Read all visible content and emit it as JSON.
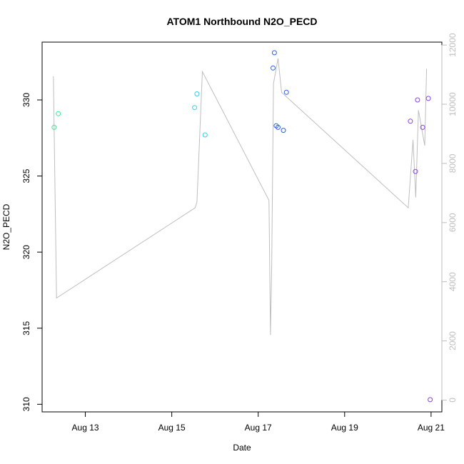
{
  "chart_data": {
    "type": "scatter",
    "title": "ATOM1 Northbound N2O_PECD",
    "xlabel": "Date",
    "ylabel": "N2O_PECD",
    "x_ticks": [
      "Aug 13",
      "Aug 15",
      "Aug 17",
      "Aug 19",
      "Aug 21"
    ],
    "y_ticks": [
      "310",
      "315",
      "320",
      "325",
      "330"
    ],
    "y2_ticks": [
      "0",
      "2000",
      "4000",
      "6000",
      "8000",
      "10000",
      "12000"
    ],
    "xlim": [
      "2016-08-12 00:00",
      "2016-08-21 06:00"
    ],
    "ylim": [
      309.5,
      333.8
    ],
    "y2lim": [
      -400,
      12100
    ],
    "legend": "none",
    "grid": false,
    "series": [
      {
        "kind": "points",
        "points": [
          {
            "x": "2016-08-12 06:40",
            "y": 328.2,
            "color": "#3fe39e"
          },
          {
            "x": "2016-08-12 09:00",
            "y": 329.1,
            "color": "#3fe39e"
          },
          {
            "x": "2016-08-15 12:40",
            "y": 329.5,
            "color": "#2fd0e6"
          },
          {
            "x": "2016-08-15 14:00",
            "y": 330.4,
            "color": "#2fd0e6"
          },
          {
            "x": "2016-08-15 18:30",
            "y": 327.7,
            "color": "#2fd0e6"
          },
          {
            "x": "2016-08-17 08:15",
            "y": 332.1,
            "color": "#2a5cf2"
          },
          {
            "x": "2016-08-17 09:00",
            "y": 333.1,
            "color": "#2a5cf2"
          },
          {
            "x": "2016-08-17 10:00",
            "y": 328.3,
            "color": "#2a5cf2"
          },
          {
            "x": "2016-08-17 11:00",
            "y": 328.2,
            "color": "#2a5cf2"
          },
          {
            "x": "2016-08-17 14:00",
            "y": 328.0,
            "color": "#2a5cf2"
          },
          {
            "x": "2016-08-17 15:40",
            "y": 330.5,
            "color": "#2a5cf2"
          },
          {
            "x": "2016-08-20 12:30",
            "y": 328.6,
            "color": "#8a3fe8"
          },
          {
            "x": "2016-08-20 15:20",
            "y": 325.3,
            "color": "#8a3fe8"
          },
          {
            "x": "2016-08-20 16:30",
            "y": 330.0,
            "color": "#8a3fe8"
          },
          {
            "x": "2016-08-20 19:20",
            "y": 328.2,
            "color": "#8a3fe8"
          },
          {
            "x": "2016-08-20 22:30",
            "y": 330.1,
            "color": "#8a3fe8"
          },
          {
            "x": "2016-08-20 23:30",
            "y": 310.3,
            "color": "#8a3fe8"
          }
        ]
      },
      {
        "kind": "line",
        "axis": "right",
        "color": "#bebebe",
        "points": [
          {
            "x": "2016-08-12 06:15",
            "y": 10950
          },
          {
            "x": "2016-08-12 08:00",
            "y": 3450
          },
          {
            "x": "2016-08-15 13:00",
            "y": 6500
          },
          {
            "x": "2016-08-15 14:00",
            "y": 6700
          },
          {
            "x": "2016-08-15 17:00",
            "y": 11100
          },
          {
            "x": "2016-08-17 06:00",
            "y": 6750
          },
          {
            "x": "2016-08-17 06:50",
            "y": 2200
          },
          {
            "x": "2016-08-17 07:30",
            "y": 4500
          },
          {
            "x": "2016-08-17 08:30",
            "y": 10700
          },
          {
            "x": "2016-08-17 11:00",
            "y": 11550
          },
          {
            "x": "2016-08-17 13:00",
            "y": 10400
          },
          {
            "x": "2016-08-20 11:20",
            "y": 6500
          },
          {
            "x": "2016-08-20 14:00",
            "y": 8800
          },
          {
            "x": "2016-08-20 15:30",
            "y": 6850
          },
          {
            "x": "2016-08-20 17:00",
            "y": 9800
          },
          {
            "x": "2016-08-20 20:30",
            "y": 8600
          },
          {
            "x": "2016-08-20 21:30",
            "y": 11200
          }
        ]
      }
    ]
  }
}
